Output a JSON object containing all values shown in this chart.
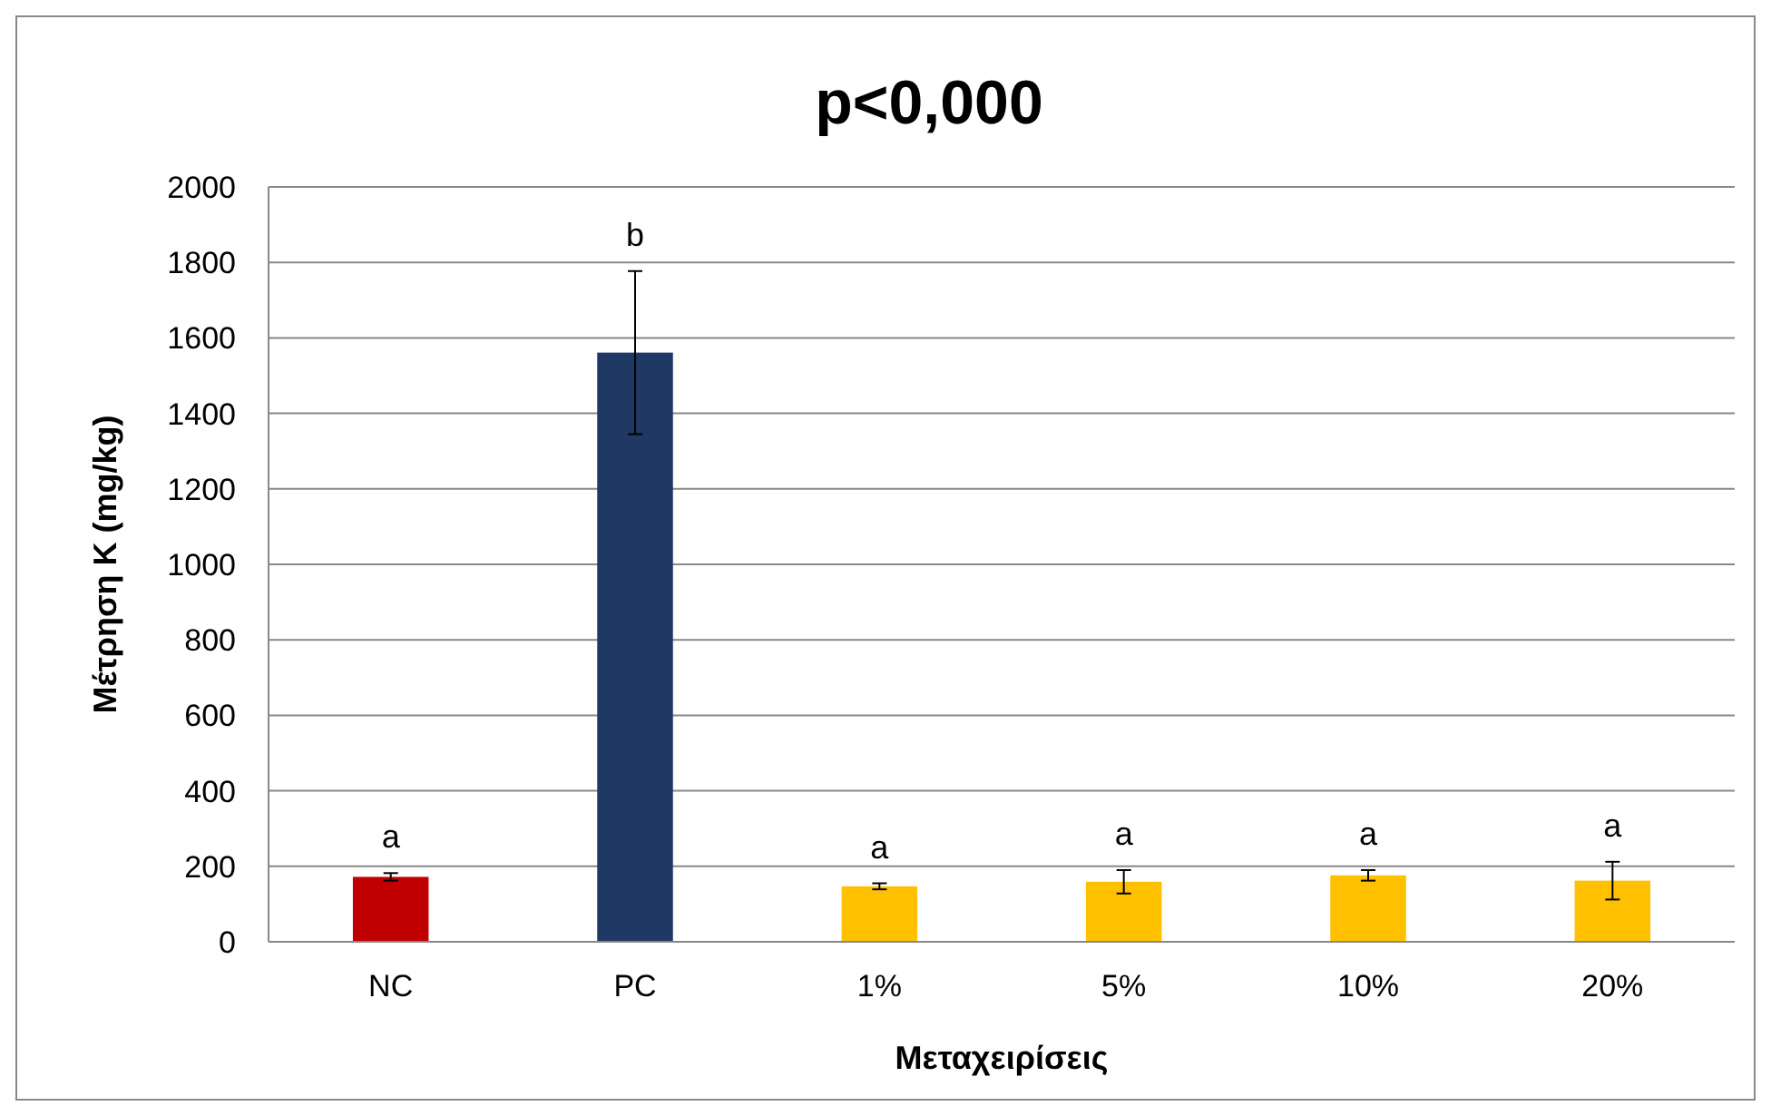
{
  "chart_data": {
    "type": "bar",
    "title": "p<0,000",
    "xlabel": "Μεταχειρίσεις",
    "ylabel": "Μέτρηση Κ (mg/kg)",
    "categories": [
      "NC",
      "PC",
      "1%",
      "5%",
      "10%",
      "20%"
    ],
    "values": [
      172,
      1561,
      147,
      159,
      176,
      162
    ],
    "colors": [
      "#c00000",
      "#1f3864",
      "#ffc000",
      "#ffc000",
      "#ffc000",
      "#ffc000"
    ],
    "errors": [
      10,
      216,
      8,
      31,
      14,
      50
    ],
    "ylim": [
      0,
      2000
    ],
    "yticks": [
      0,
      200,
      400,
      600,
      800,
      1000,
      1200,
      1400,
      1600,
      1800,
      2000
    ],
    "grid": "y",
    "annotations": [
      "a",
      "b",
      "a",
      "a",
      "a",
      "a"
    ]
  }
}
